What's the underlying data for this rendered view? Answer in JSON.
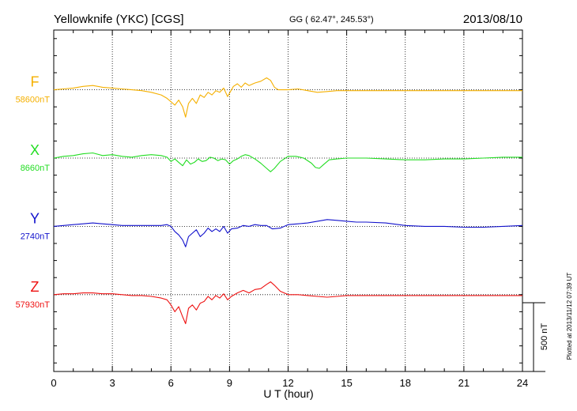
{
  "header": {
    "title": "Yellowknife (YKC)  [CGS]",
    "coords": "GG ( 62.47°, 245.53°)",
    "date": "2013/08/10"
  },
  "footer": {
    "plotted": "Plotted at 2013/11/12 07:39 UT"
  },
  "chart_data": {
    "type": "line",
    "title": "Yellowknife (YKC)  [CGS]",
    "xlabel": "U T (hour)",
    "ylabel": "",
    "xlim": [
      0,
      24
    ],
    "x_ticks": [
      0,
      3,
      6,
      9,
      12,
      15,
      18,
      21,
      24
    ],
    "x_tick_labels": [
      "0",
      "3",
      "6",
      "9",
      "12",
      "15",
      "18",
      "21",
      "24"
    ],
    "y_range_nT": [
      -1650,
      350
    ],
    "y_unit": "nT",
    "y_gridlines_nT": [
      0,
      -400,
      -800,
      -1200
    ],
    "scale_bar_label": "500 nT",
    "scale_bar_nT": 500,
    "grid": true,
    "series": [
      {
        "name": "F",
        "baseline_label": "58600nT",
        "color": "#f5b000",
        "offset_nT": 0,
        "x": [
          0,
          0.5,
          1,
          1.5,
          2,
          2.5,
          3,
          3.5,
          4,
          4.5,
          5,
          5.5,
          5.8,
          6,
          6.2,
          6.4,
          6.6,
          6.75,
          6.9,
          7.1,
          7.3,
          7.5,
          7.7,
          7.9,
          8.1,
          8.3,
          8.5,
          8.7,
          8.9,
          9,
          9.2,
          9.4,
          9.6,
          9.8,
          10,
          10.3,
          10.6,
          10.9,
          11.1,
          11.3,
          11.5,
          12,
          12.5,
          13,
          13.5,
          14,
          14.5,
          15,
          16,
          17,
          18,
          19,
          20,
          21,
          22,
          23,
          24
        ],
        "values": [
          0,
          5,
          10,
          20,
          25,
          15,
          10,
          5,
          0,
          -5,
          -15,
          -30,
          -50,
          -70,
          -90,
          -60,
          -100,
          -160,
          -80,
          -50,
          -80,
          -30,
          -45,
          -15,
          -30,
          -5,
          -15,
          10,
          -40,
          -20,
          20,
          35,
          15,
          40,
          25,
          40,
          50,
          70,
          55,
          15,
          0,
          0,
          5,
          -5,
          -15,
          -10,
          -5,
          -5,
          -5,
          -5,
          -5,
          -5,
          -5,
          -5,
          -5,
          -5,
          -5
        ]
      },
      {
        "name": "X",
        "baseline_label": "8660nT",
        "color": "#22dd22",
        "offset_nT": -400,
        "x": [
          0,
          0.5,
          1,
          1.5,
          2,
          2.5,
          3,
          3.5,
          4,
          4.5,
          5,
          5.5,
          5.8,
          6,
          6.2,
          6.4,
          6.6,
          6.8,
          7,
          7.2,
          7.4,
          7.6,
          7.8,
          8,
          8.2,
          8.4,
          8.6,
          8.8,
          9,
          9.2,
          9.4,
          9.6,
          9.8,
          10,
          10.3,
          10.6,
          10.9,
          11.1,
          11.3,
          11.6,
          12,
          12.4,
          12.8,
          13.2,
          13.4,
          13.6,
          13.8,
          14.1,
          14.5,
          15,
          16,
          17,
          18,
          19,
          20,
          21,
          22,
          23,
          24
        ],
        "values": [
          0,
          10,
          15,
          25,
          30,
          15,
          20,
          10,
          5,
          15,
          20,
          15,
          5,
          -20,
          -5,
          -25,
          -45,
          -10,
          -35,
          -25,
          -5,
          -20,
          -15,
          5,
          0,
          -15,
          -5,
          -10,
          -35,
          -15,
          -5,
          10,
          20,
          15,
          -5,
          -30,
          -60,
          -80,
          -60,
          -20,
          10,
          10,
          0,
          -30,
          -55,
          -60,
          -40,
          -10,
          -5,
          0,
          0,
          -5,
          -10,
          -10,
          -5,
          -5,
          0,
          5,
          5
        ]
      },
      {
        "name": "Y",
        "baseline_label": "2740nT",
        "color": "#1111cc",
        "offset_nT": -800,
        "x": [
          0,
          0.5,
          1,
          1.5,
          2,
          2.5,
          3,
          3.5,
          4,
          4.5,
          5,
          5.5,
          5.8,
          6,
          6.2,
          6.4,
          6.6,
          6.75,
          6.9,
          7.1,
          7.3,
          7.5,
          7.7,
          7.9,
          8.1,
          8.3,
          8.5,
          8.7,
          8.9,
          9.1,
          9.4,
          9.7,
          10,
          10.3,
          10.6,
          10.9,
          11.2,
          11.6,
          12,
          12.5,
          13,
          13.5,
          14,
          14.5,
          15,
          15.5,
          16,
          17,
          18,
          19,
          20,
          21,
          22,
          23,
          24
        ],
        "values": [
          0,
          5,
          10,
          15,
          20,
          15,
          10,
          5,
          5,
          5,
          5,
          5,
          10,
          0,
          -30,
          -50,
          -80,
          -120,
          -60,
          -40,
          -20,
          -60,
          -40,
          -10,
          -30,
          -15,
          -30,
          0,
          -40,
          -15,
          -10,
          5,
          0,
          10,
          5,
          5,
          -15,
          -10,
          10,
          15,
          20,
          30,
          40,
          35,
          30,
          25,
          25,
          20,
          5,
          0,
          0,
          -5,
          -5,
          0,
          5
        ]
      },
      {
        "name": "Z",
        "baseline_label": "57930nT",
        "color": "#ee1111",
        "offset_nT": -1200,
        "x": [
          0,
          0.5,
          1,
          1.5,
          2,
          2.5,
          3,
          3.5,
          4,
          4.5,
          5,
          5.5,
          5.8,
          6,
          6.2,
          6.4,
          6.6,
          6.75,
          6.9,
          7.1,
          7.3,
          7.5,
          7.7,
          7.9,
          8.1,
          8.3,
          8.5,
          8.7,
          8.9,
          9.1,
          9.4,
          9.7,
          10,
          10.3,
          10.6,
          10.9,
          11.1,
          11.3,
          11.6,
          12,
          12.5,
          13,
          13.5,
          14,
          14.5,
          15,
          16,
          17,
          18,
          19,
          20,
          21,
          22,
          23,
          24
        ],
        "values": [
          0,
          5,
          5,
          10,
          10,
          5,
          5,
          0,
          -5,
          -5,
          -10,
          -20,
          -30,
          -60,
          -100,
          -70,
          -130,
          -170,
          -80,
          -60,
          -90,
          -50,
          -40,
          -10,
          -30,
          -5,
          -20,
          5,
          -30,
          -10,
          10,
          25,
          10,
          30,
          35,
          60,
          75,
          55,
          20,
          0,
          0,
          -5,
          -10,
          -15,
          -10,
          -5,
          -5,
          -5,
          -5,
          -5,
          -5,
          -5,
          -5,
          -5,
          -5
        ]
      }
    ]
  }
}
